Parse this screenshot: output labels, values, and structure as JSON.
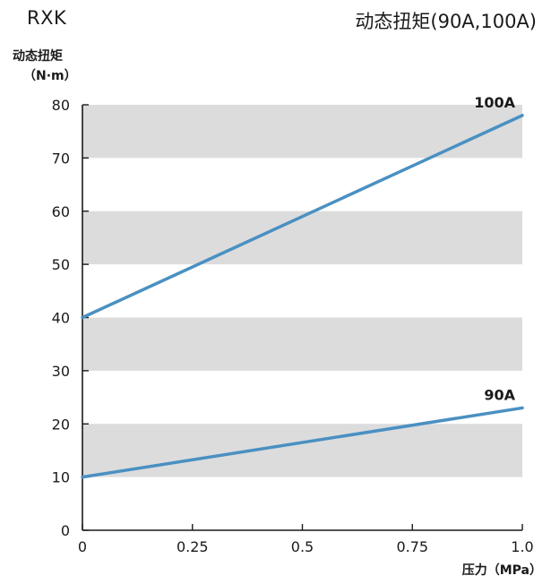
{
  "header": {
    "model": "RXK",
    "title": "动态扭矩(90A,100A)"
  },
  "chart_data": {
    "type": "line",
    "title": "动态扭矩(90A,100A)",
    "ylabel_line1": "动态扭矩",
    "ylabel_line2": "（N·m）",
    "xlabel": "压力（MPa）",
    "xlim": [
      0,
      1.0
    ],
    "ylim": [
      0,
      80
    ],
    "x_ticks": [
      0,
      0.25,
      0.5,
      0.75,
      1.0
    ],
    "x_tick_labels": [
      "0",
      "0.25",
      "0.5",
      "0.75",
      "1.0"
    ],
    "y_ticks": [
      0,
      10,
      20,
      30,
      40,
      50,
      60,
      70,
      80
    ],
    "y_tick_labels": [
      "0",
      "10",
      "20",
      "30",
      "40",
      "50",
      "60",
      "70",
      "80"
    ],
    "grid": "alternating horizontal bands",
    "band_color": "#dcdcdd",
    "line_color": "#4a90c2",
    "series": [
      {
        "name": "100A",
        "x": [
          0,
          1.0
        ],
        "y": [
          40,
          78
        ]
      },
      {
        "name": "90A",
        "x": [
          0,
          1.0
        ],
        "y": [
          10,
          23
        ]
      }
    ]
  }
}
